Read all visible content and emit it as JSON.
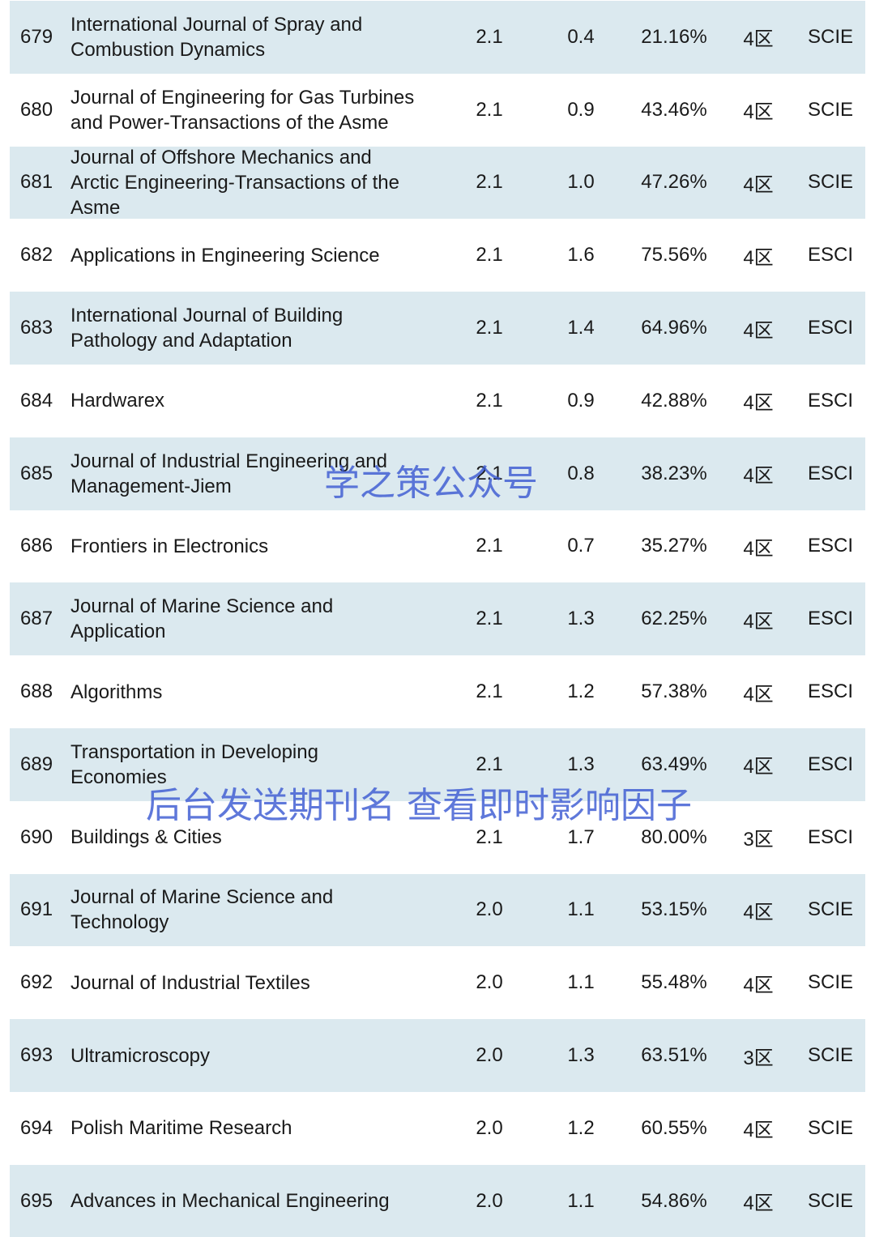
{
  "table": {
    "rows": [
      {
        "num": "679",
        "title": [
          "International Journal of Spray and",
          "Combustion Dynamics"
        ],
        "if": "2.1",
        "b": "0.4",
        "pct": "21.16%",
        "zone": "4区",
        "index": "SCIE"
      },
      {
        "num": "680",
        "title": [
          "Journal of Engineering for Gas Turbines",
          "and Power-Transactions of the Asme"
        ],
        "if": "2.1",
        "b": "0.9",
        "pct": "43.46%",
        "zone": "4区",
        "index": "SCIE"
      },
      {
        "num": "681",
        "title": [
          "Journal of Offshore Mechanics and",
          "Arctic Engineering-Transactions of the",
          "Asme"
        ],
        "if": "2.1",
        "b": "1.0",
        "pct": "47.26%",
        "zone": "4区",
        "index": "SCIE"
      },
      {
        "num": "682",
        "title": [
          "Applications in Engineering Science"
        ],
        "if": "2.1",
        "b": "1.6",
        "pct": "75.56%",
        "zone": "4区",
        "index": "ESCI"
      },
      {
        "num": "683",
        "title": [
          "International Journal of Building",
          "Pathology and Adaptation"
        ],
        "if": "2.1",
        "b": "1.4",
        "pct": "64.96%",
        "zone": "4区",
        "index": "ESCI"
      },
      {
        "num": "684",
        "title": [
          "Hardwarex"
        ],
        "if": "2.1",
        "b": "0.9",
        "pct": "42.88%",
        "zone": "4区",
        "index": "ESCI"
      },
      {
        "num": "685",
        "title": [
          "Journal of Industrial Engineering and",
          "Management-Jiem"
        ],
        "if": "2.1",
        "b": "0.8",
        "pct": "38.23%",
        "zone": "4区",
        "index": "ESCI"
      },
      {
        "num": "686",
        "title": [
          "Frontiers in Electronics"
        ],
        "if": "2.1",
        "b": "0.7",
        "pct": "35.27%",
        "zone": "4区",
        "index": "ESCI"
      },
      {
        "num": "687",
        "title": [
          "Journal of Marine Science and",
          "Application"
        ],
        "if": "2.1",
        "b": "1.3",
        "pct": "62.25%",
        "zone": "4区",
        "index": "ESCI"
      },
      {
        "num": "688",
        "title": [
          "Algorithms"
        ],
        "if": "2.1",
        "b": "1.2",
        "pct": "57.38%",
        "zone": "4区",
        "index": "ESCI"
      },
      {
        "num": "689",
        "title": [
          "Transportation in Developing",
          "Economies"
        ],
        "if": "2.1",
        "b": "1.3",
        "pct": "63.49%",
        "zone": "4区",
        "index": "ESCI"
      },
      {
        "num": "690",
        "title": [
          "Buildings & Cities"
        ],
        "if": "2.1",
        "b": "1.7",
        "pct": "80.00%",
        "zone": "3区",
        "index": "ESCI"
      },
      {
        "num": "691",
        "title": [
          "Journal of Marine Science and",
          "Technology"
        ],
        "if": "2.0",
        "b": "1.1",
        "pct": "53.15%",
        "zone": "4区",
        "index": "SCIE"
      },
      {
        "num": "692",
        "title": [
          "Journal of Industrial Textiles"
        ],
        "if": "2.0",
        "b": "1.1",
        "pct": "55.48%",
        "zone": "4区",
        "index": "SCIE"
      },
      {
        "num": "693",
        "title": [
          "Ultramicroscopy"
        ],
        "if": "2.0",
        "b": "1.3",
        "pct": "63.51%",
        "zone": "3区",
        "index": "SCIE"
      },
      {
        "num": "694",
        "title": [
          "Polish Maritime Research"
        ],
        "if": "2.0",
        "b": "1.2",
        "pct": "60.55%",
        "zone": "4区",
        "index": "SCIE"
      },
      {
        "num": "695",
        "title": [
          "Advances in Mechanical Engineering"
        ],
        "if": "2.0",
        "b": "1.1",
        "pct": "54.86%",
        "zone": "4区",
        "index": "SCIE"
      }
    ]
  },
  "watermarks": [
    "学之策公众号",
    "后台发送期刊名 查看即时影响因子"
  ]
}
